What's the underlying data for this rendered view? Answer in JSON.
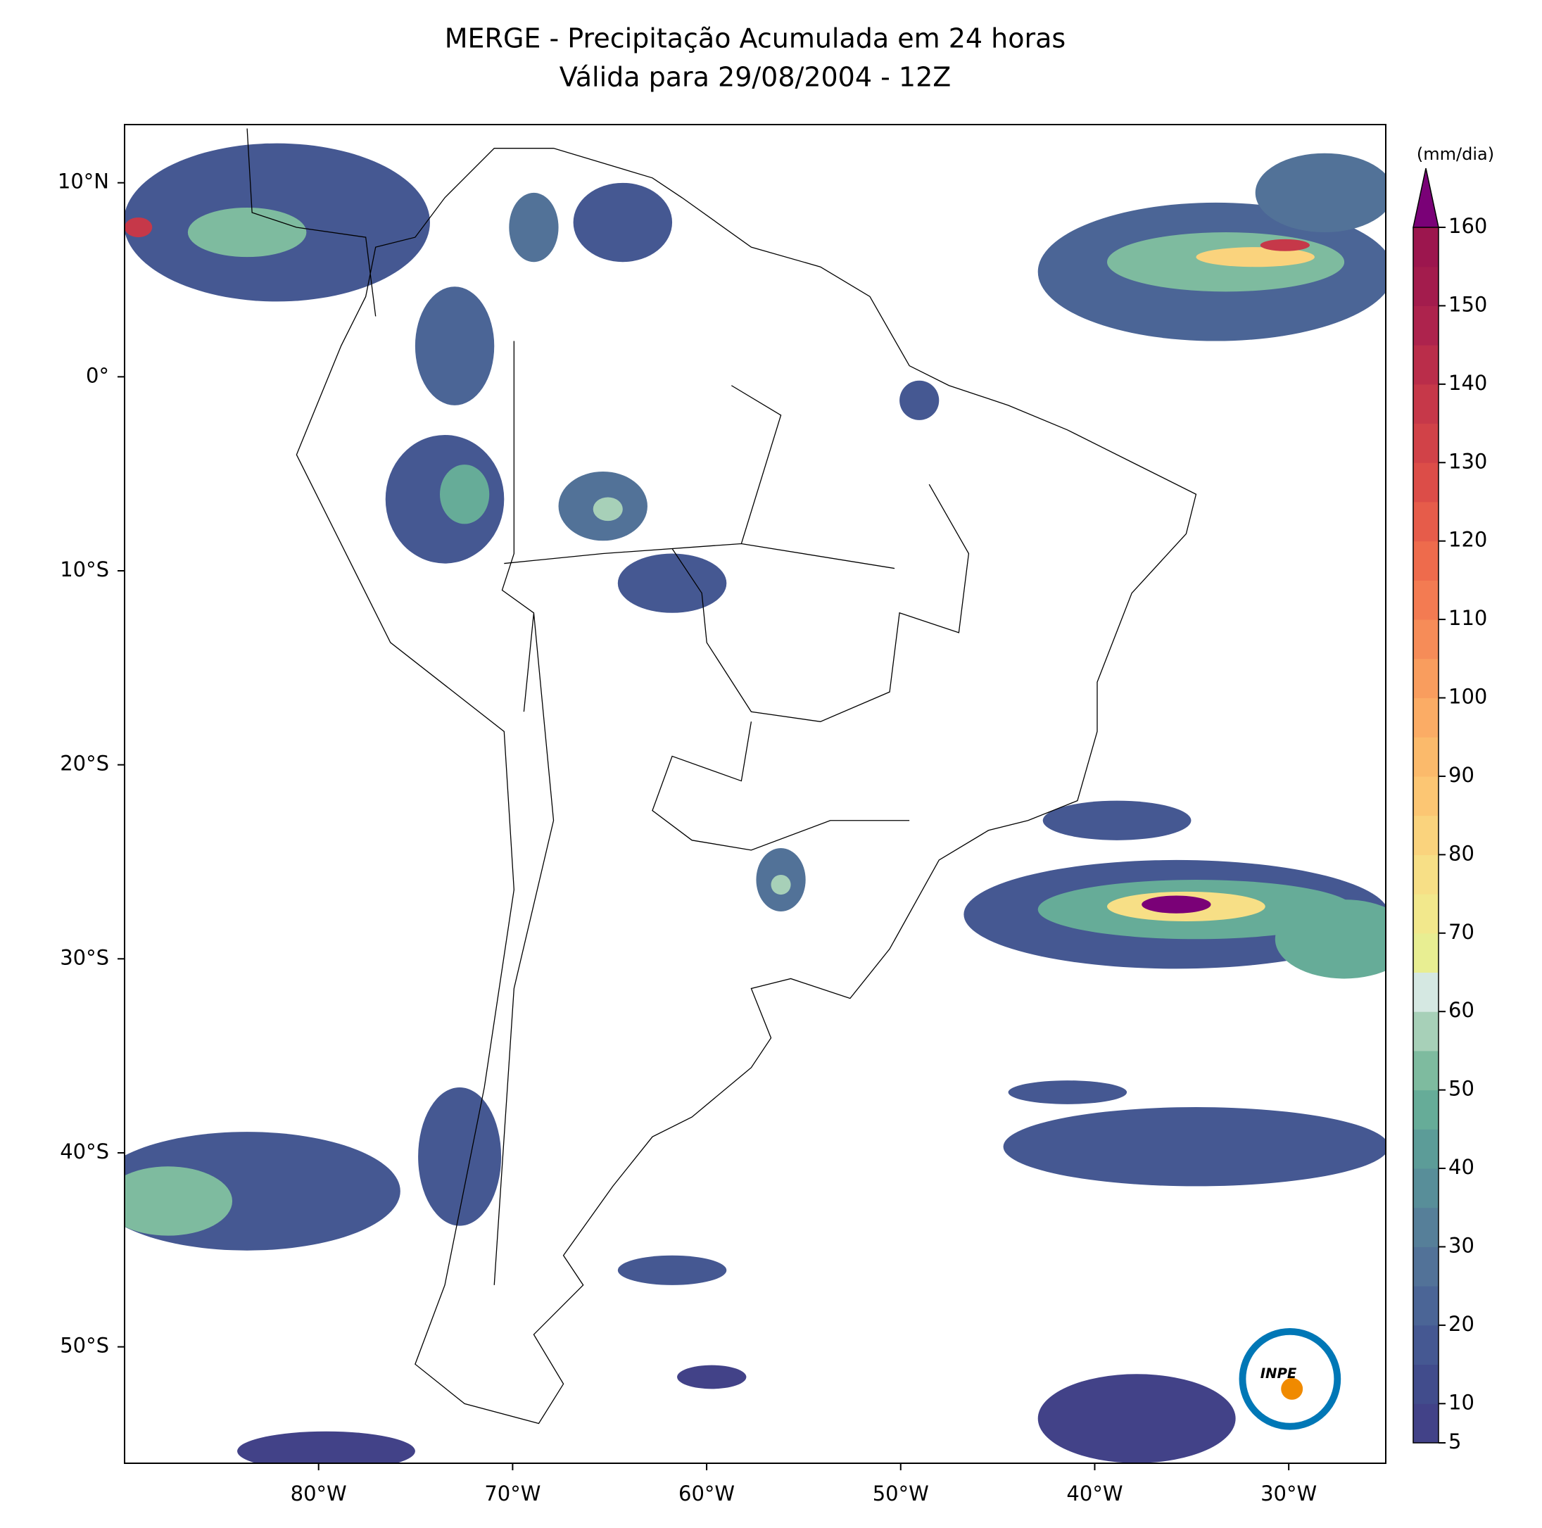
{
  "chart_data": {
    "type": "map",
    "title": "MERGE - Precipitação Acumulada em 24 horas",
    "subtitle": "Válida para 29/08/2004 - 12Z",
    "xlim": [
      -90,
      -25
    ],
    "ylim": [
      -56,
      13
    ],
    "xticks": [
      {
        "value": -80,
        "label": "80°W"
      },
      {
        "value": -70,
        "label": "70°W"
      },
      {
        "value": -60,
        "label": "60°W"
      },
      {
        "value": -50,
        "label": "50°W"
      },
      {
        "value": -40,
        "label": "40°W"
      },
      {
        "value": -30,
        "label": "30°W"
      }
    ],
    "yticks": [
      {
        "value": 10,
        "label": "10°N"
      },
      {
        "value": 0,
        "label": "0°"
      },
      {
        "value": -10,
        "label": "10°S"
      },
      {
        "value": -20,
        "label": "20°S"
      },
      {
        "value": -30,
        "label": "30°S"
      },
      {
        "value": -40,
        "label": "40°S"
      },
      {
        "value": -50,
        "label": "50°S"
      }
    ],
    "colorbar": {
      "unit": "(mm/dia)",
      "levels": [
        5,
        10,
        15,
        20,
        25,
        30,
        35,
        40,
        45,
        50,
        55,
        60,
        65,
        70,
        75,
        80,
        85,
        90,
        95,
        100,
        105,
        110,
        115,
        120,
        125,
        130,
        135,
        140,
        145,
        150,
        155,
        160
      ],
      "colors": [
        "#424288",
        "#414c8c",
        "#455892",
        "#4b6596",
        "#527298",
        "#567f99",
        "#588e99",
        "#5c9c98",
        "#66ac98",
        "#7ebb9f",
        "#a7d0b8",
        "#d5e8e2",
        "#e8ee92",
        "#f2e88c",
        "#f7df86",
        "#fad37d",
        "#fcc673",
        "#fbba6b",
        "#fbac65",
        "#f99d5e",
        "#f68c58",
        "#f37b52",
        "#ee6b4c",
        "#e65c4a",
        "#dc4d48",
        "#d14248",
        "#c63849",
        "#ba2d4a",
        "#ad234d",
        "#a31c4d",
        "#9c164e"
      ],
      "extend_color": "#7a0177",
      "ticks": [
        5,
        10,
        20,
        30,
        40,
        50,
        60,
        70,
        80,
        90,
        100,
        110,
        120,
        130,
        140,
        150,
        160
      ]
    },
    "logo_text": "INPE"
  }
}
